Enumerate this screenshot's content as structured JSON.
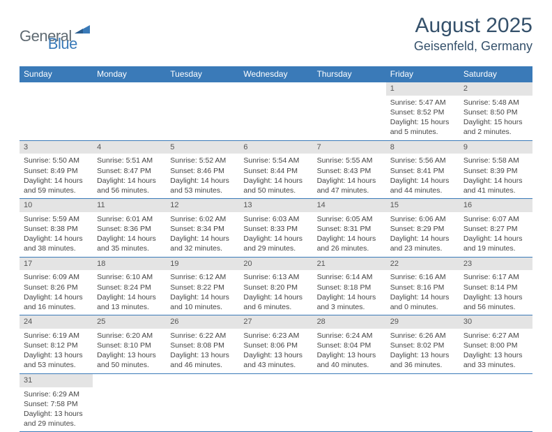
{
  "logo": {
    "text1": "General",
    "text2": "Blue"
  },
  "title": "August 2025",
  "location": "Geisenfeld, Germany",
  "colors": {
    "header_bg": "#3a7ab8",
    "header_text": "#ffffff",
    "daynum_bg": "#e4e4e4",
    "border": "#3a7ab8",
    "title_color": "#35516b"
  },
  "day_headers": [
    "Sunday",
    "Monday",
    "Tuesday",
    "Wednesday",
    "Thursday",
    "Friday",
    "Saturday"
  ],
  "weeks": [
    [
      {
        "n": "",
        "lines": []
      },
      {
        "n": "",
        "lines": []
      },
      {
        "n": "",
        "lines": []
      },
      {
        "n": "",
        "lines": []
      },
      {
        "n": "",
        "lines": []
      },
      {
        "n": "1",
        "lines": [
          "Sunrise: 5:47 AM",
          "Sunset: 8:52 PM",
          "Daylight: 15 hours and 5 minutes."
        ]
      },
      {
        "n": "2",
        "lines": [
          "Sunrise: 5:48 AM",
          "Sunset: 8:50 PM",
          "Daylight: 15 hours and 2 minutes."
        ]
      }
    ],
    [
      {
        "n": "3",
        "lines": [
          "Sunrise: 5:50 AM",
          "Sunset: 8:49 PM",
          "Daylight: 14 hours and 59 minutes."
        ]
      },
      {
        "n": "4",
        "lines": [
          "Sunrise: 5:51 AM",
          "Sunset: 8:47 PM",
          "Daylight: 14 hours and 56 minutes."
        ]
      },
      {
        "n": "5",
        "lines": [
          "Sunrise: 5:52 AM",
          "Sunset: 8:46 PM",
          "Daylight: 14 hours and 53 minutes."
        ]
      },
      {
        "n": "6",
        "lines": [
          "Sunrise: 5:54 AM",
          "Sunset: 8:44 PM",
          "Daylight: 14 hours and 50 minutes."
        ]
      },
      {
        "n": "7",
        "lines": [
          "Sunrise: 5:55 AM",
          "Sunset: 8:43 PM",
          "Daylight: 14 hours and 47 minutes."
        ]
      },
      {
        "n": "8",
        "lines": [
          "Sunrise: 5:56 AM",
          "Sunset: 8:41 PM",
          "Daylight: 14 hours and 44 minutes."
        ]
      },
      {
        "n": "9",
        "lines": [
          "Sunrise: 5:58 AM",
          "Sunset: 8:39 PM",
          "Daylight: 14 hours and 41 minutes."
        ]
      }
    ],
    [
      {
        "n": "10",
        "lines": [
          "Sunrise: 5:59 AM",
          "Sunset: 8:38 PM",
          "Daylight: 14 hours and 38 minutes."
        ]
      },
      {
        "n": "11",
        "lines": [
          "Sunrise: 6:01 AM",
          "Sunset: 8:36 PM",
          "Daylight: 14 hours and 35 minutes."
        ]
      },
      {
        "n": "12",
        "lines": [
          "Sunrise: 6:02 AM",
          "Sunset: 8:34 PM",
          "Daylight: 14 hours and 32 minutes."
        ]
      },
      {
        "n": "13",
        "lines": [
          "Sunrise: 6:03 AM",
          "Sunset: 8:33 PM",
          "Daylight: 14 hours and 29 minutes."
        ]
      },
      {
        "n": "14",
        "lines": [
          "Sunrise: 6:05 AM",
          "Sunset: 8:31 PM",
          "Daylight: 14 hours and 26 minutes."
        ]
      },
      {
        "n": "15",
        "lines": [
          "Sunrise: 6:06 AM",
          "Sunset: 8:29 PM",
          "Daylight: 14 hours and 23 minutes."
        ]
      },
      {
        "n": "16",
        "lines": [
          "Sunrise: 6:07 AM",
          "Sunset: 8:27 PM",
          "Daylight: 14 hours and 19 minutes."
        ]
      }
    ],
    [
      {
        "n": "17",
        "lines": [
          "Sunrise: 6:09 AM",
          "Sunset: 8:26 PM",
          "Daylight: 14 hours and 16 minutes."
        ]
      },
      {
        "n": "18",
        "lines": [
          "Sunrise: 6:10 AM",
          "Sunset: 8:24 PM",
          "Daylight: 14 hours and 13 minutes."
        ]
      },
      {
        "n": "19",
        "lines": [
          "Sunrise: 6:12 AM",
          "Sunset: 8:22 PM",
          "Daylight: 14 hours and 10 minutes."
        ]
      },
      {
        "n": "20",
        "lines": [
          "Sunrise: 6:13 AM",
          "Sunset: 8:20 PM",
          "Daylight: 14 hours and 6 minutes."
        ]
      },
      {
        "n": "21",
        "lines": [
          "Sunrise: 6:14 AM",
          "Sunset: 8:18 PM",
          "Daylight: 14 hours and 3 minutes."
        ]
      },
      {
        "n": "22",
        "lines": [
          "Sunrise: 6:16 AM",
          "Sunset: 8:16 PM",
          "Daylight: 14 hours and 0 minutes."
        ]
      },
      {
        "n": "23",
        "lines": [
          "Sunrise: 6:17 AM",
          "Sunset: 8:14 PM",
          "Daylight: 13 hours and 56 minutes."
        ]
      }
    ],
    [
      {
        "n": "24",
        "lines": [
          "Sunrise: 6:19 AM",
          "Sunset: 8:12 PM",
          "Daylight: 13 hours and 53 minutes."
        ]
      },
      {
        "n": "25",
        "lines": [
          "Sunrise: 6:20 AM",
          "Sunset: 8:10 PM",
          "Daylight: 13 hours and 50 minutes."
        ]
      },
      {
        "n": "26",
        "lines": [
          "Sunrise: 6:22 AM",
          "Sunset: 8:08 PM",
          "Daylight: 13 hours and 46 minutes."
        ]
      },
      {
        "n": "27",
        "lines": [
          "Sunrise: 6:23 AM",
          "Sunset: 8:06 PM",
          "Daylight: 13 hours and 43 minutes."
        ]
      },
      {
        "n": "28",
        "lines": [
          "Sunrise: 6:24 AM",
          "Sunset: 8:04 PM",
          "Daylight: 13 hours and 40 minutes."
        ]
      },
      {
        "n": "29",
        "lines": [
          "Sunrise: 6:26 AM",
          "Sunset: 8:02 PM",
          "Daylight: 13 hours and 36 minutes."
        ]
      },
      {
        "n": "30",
        "lines": [
          "Sunrise: 6:27 AM",
          "Sunset: 8:00 PM",
          "Daylight: 13 hours and 33 minutes."
        ]
      }
    ],
    [
      {
        "n": "31",
        "lines": [
          "Sunrise: 6:29 AM",
          "Sunset: 7:58 PM",
          "Daylight: 13 hours and 29 minutes."
        ]
      },
      {
        "n": "",
        "lines": []
      },
      {
        "n": "",
        "lines": []
      },
      {
        "n": "",
        "lines": []
      },
      {
        "n": "",
        "lines": []
      },
      {
        "n": "",
        "lines": []
      },
      {
        "n": "",
        "lines": []
      }
    ]
  ]
}
